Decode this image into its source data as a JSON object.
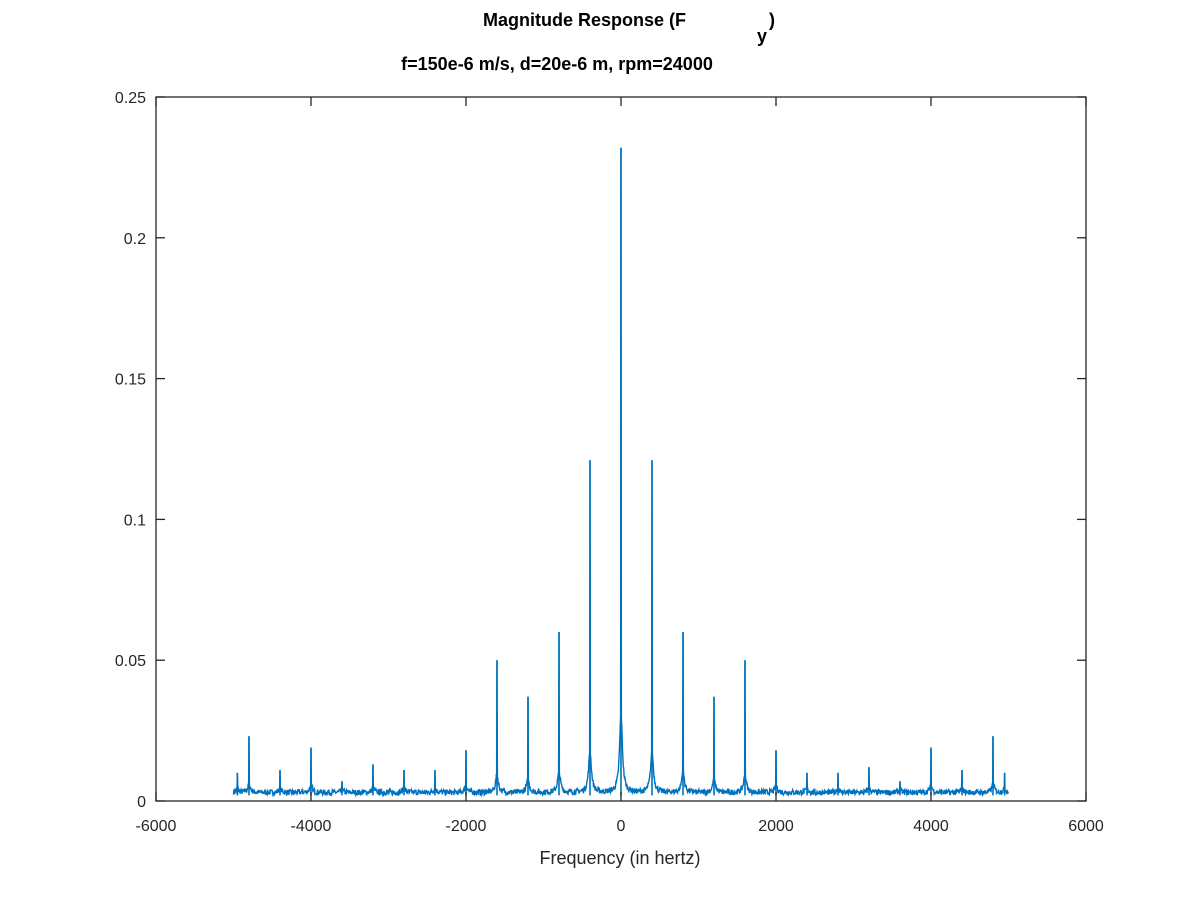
{
  "chart_data": {
    "type": "line",
    "title_main": "Magnitude Response (F",
    "title_subscript": "y",
    "title_close": ")",
    "subtitle": "f=150e-6 m/s, d=20e-6 m, rpm=24000",
    "xlabel": "Frequency (in hertz)",
    "ylabel": "",
    "xlim": [
      -6000,
      6000
    ],
    "ylim": [
      0,
      0.25
    ],
    "xticks": [
      -6000,
      -4000,
      -2000,
      0,
      2000,
      4000,
      6000
    ],
    "xtick_labels": [
      "-6000",
      "-4000",
      "-2000",
      "0",
      "2000",
      "4000",
      "6000"
    ],
    "yticks": [
      0,
      0.05,
      0.1,
      0.15,
      0.2,
      0.25
    ],
    "ytick_labels": [
      "0",
      "0.05",
      "0.1",
      "0.15",
      "0.2",
      "0.25"
    ],
    "grid": false,
    "x_range": [
      -5000,
      5000
    ],
    "baseline": 0.002,
    "peaks": [
      {
        "x": 0,
        "y": 0.232
      },
      {
        "x": -400,
        "y": 0.121
      },
      {
        "x": 400,
        "y": 0.121
      },
      {
        "x": -800,
        "y": 0.06
      },
      {
        "x": 800,
        "y": 0.06
      },
      {
        "x": -1200,
        "y": 0.037
      },
      {
        "x": 1200,
        "y": 0.037
      },
      {
        "x": -1600,
        "y": 0.05
      },
      {
        "x": 1600,
        "y": 0.05
      },
      {
        "x": -2000,
        "y": 0.018
      },
      {
        "x": 2000,
        "y": 0.018
      },
      {
        "x": -2400,
        "y": 0.011
      },
      {
        "x": 2400,
        "y": 0.01
      },
      {
        "x": -2800,
        "y": 0.011
      },
      {
        "x": 2800,
        "y": 0.01
      },
      {
        "x": -3200,
        "y": 0.013
      },
      {
        "x": 3200,
        "y": 0.012
      },
      {
        "x": -3600,
        "y": 0.007
      },
      {
        "x": 3600,
        "y": 0.007
      },
      {
        "x": -4000,
        "y": 0.019
      },
      {
        "x": 4000,
        "y": 0.019
      },
      {
        "x": -4400,
        "y": 0.011
      },
      {
        "x": 4400,
        "y": 0.011
      },
      {
        "x": -4800,
        "y": 0.023
      },
      {
        "x": 4800,
        "y": 0.023
      },
      {
        "x": -4950,
        "y": 0.01
      },
      {
        "x": 4950,
        "y": 0.01
      }
    ],
    "series": [
      {
        "color": "#0072bd"
      }
    ]
  }
}
